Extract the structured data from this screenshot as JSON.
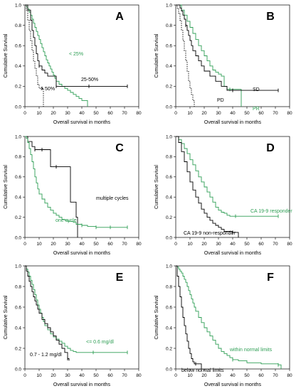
{
  "chart_data": [
    {
      "type": "line",
      "panel": "A",
      "xlabel": "Overall survival in months",
      "ylabel": "Cumulative Survival",
      "xlim": [
        0,
        80
      ],
      "ylim": [
        0,
        1
      ],
      "xticks": [
        "0",
        "10",
        "20",
        "30",
        "40",
        "50",
        "60",
        "70",
        "80"
      ],
      "yticks": [
        "0.0",
        "0.2",
        "0.4",
        "0.6",
        "0.8",
        "1.0"
      ],
      "grid": false,
      "series": [
        {
          "name": "< 25%",
          "color": "#2e9e54",
          "style": "solid",
          "x": [
            0,
            1,
            2,
            3,
            4,
            5,
            6,
            7,
            8,
            9,
            10,
            11,
            12,
            13,
            14,
            15,
            16,
            17,
            18,
            19,
            20,
            21,
            22,
            24,
            26,
            28,
            30,
            32,
            34,
            36,
            38,
            40,
            44
          ],
          "y": [
            1,
            0.98,
            0.96,
            0.93,
            0.9,
            0.86,
            0.82,
            0.78,
            0.74,
            0.7,
            0.66,
            0.62,
            0.58,
            0.54,
            0.5,
            0.46,
            0.43,
            0.4,
            0.37,
            0.34,
            0.31,
            0.28,
            0.25,
            0.22,
            0.2,
            0.18,
            0.16,
            0.14,
            0.12,
            0.1,
            0.08,
            0.06,
            0
          ]
        },
        {
          "name": "25-50%",
          "color": "#000000",
          "style": "solid",
          "x": [
            0,
            2,
            4,
            5,
            6,
            7,
            8,
            9,
            10,
            12,
            14,
            16,
            18,
            20,
            22,
            45,
            72
          ],
          "y": [
            1,
            0.95,
            0.85,
            0.75,
            0.68,
            0.6,
            0.52,
            0.45,
            0.4,
            0.36,
            0.33,
            0.3,
            0.3,
            0.3,
            0.2,
            0.2,
            0.2
          ],
          "censored_x": [
            10,
            22,
            45,
            72
          ]
        },
        {
          "name": "> 50%",
          "color": "#000000",
          "style": "dotted",
          "x": [
            0,
            1,
            2,
            3,
            4,
            5,
            6,
            7,
            8,
            9,
            10,
            11,
            12,
            13
          ],
          "y": [
            1,
            0.95,
            0.85,
            0.75,
            0.65,
            0.55,
            0.45,
            0.38,
            0.3,
            0.22,
            0.18,
            0.18,
            0.18,
            0
          ],
          "censored_x": [
            12
          ]
        }
      ]
    },
    {
      "type": "line",
      "panel": "B",
      "xlabel": "Overall survival in months",
      "ylabel": "Cumulative Survival",
      "xlim": [
        0,
        80
      ],
      "ylim": [
        0,
        1
      ],
      "xticks": [
        "0",
        "10",
        "20",
        "30",
        "40",
        "50",
        "60",
        "70",
        "80"
      ],
      "yticks": [
        "0.0",
        "0.2",
        "0.4",
        "0.6",
        "0.8",
        "1.0"
      ],
      "grid": false,
      "series": [
        {
          "name": "PR",
          "color": "#2e9e54",
          "style": "solid",
          "x": [
            0,
            4,
            6,
            8,
            10,
            12,
            14,
            16,
            18,
            20,
            22,
            24,
            26,
            28,
            30,
            32,
            34,
            36,
            38,
            40,
            44,
            46
          ],
          "y": [
            1,
            0.95,
            0.9,
            0.84,
            0.78,
            0.72,
            0.66,
            0.6,
            0.55,
            0.5,
            0.45,
            0.4,
            0.36,
            0.34,
            0.32,
            0.3,
            0.2,
            0.17,
            0.17,
            0.17,
            0.17,
            0
          ],
          "censored_x": [
            38
          ]
        },
        {
          "name": "SD",
          "color": "#000000",
          "style": "solid",
          "x": [
            0,
            3,
            4,
            5,
            6,
            7,
            8,
            9,
            10,
            11,
            12,
            14,
            16,
            18,
            20,
            24,
            28,
            32,
            36,
            40,
            72
          ],
          "y": [
            1,
            0.97,
            0.94,
            0.9,
            0.86,
            0.8,
            0.75,
            0.7,
            0.65,
            0.6,
            0.55,
            0.5,
            0.45,
            0.4,
            0.35,
            0.3,
            0.25,
            0.2,
            0.16,
            0.16,
            0.16
          ],
          "censored_x": [
            7,
            40,
            72
          ]
        },
        {
          "name": "PD",
          "color": "#000000",
          "style": "dotted",
          "x": [
            0,
            1,
            2,
            3,
            4,
            5,
            6,
            7,
            8,
            9,
            10,
            11,
            12,
            13
          ],
          "y": [
            1,
            0.97,
            0.92,
            0.85,
            0.75,
            0.65,
            0.55,
            0.45,
            0.35,
            0.25,
            0.18,
            0.12,
            0.06,
            0
          ]
        }
      ]
    },
    {
      "type": "line",
      "panel": "C",
      "xlabel": "Overall survival in months",
      "ylabel": "Cumulative Survival",
      "xlim": [
        0,
        80
      ],
      "ylim": [
        0,
        1
      ],
      "xticks": [
        "0",
        "10",
        "20",
        "30",
        "40",
        "50",
        "60",
        "70",
        "80"
      ],
      "yticks": [
        "0.0",
        "0.2",
        "0.4",
        "0.6",
        "0.8",
        "1.0"
      ],
      "grid": false,
      "series": [
        {
          "name": "multiple cycles",
          "color": "#000000",
          "style": "solid",
          "x": [
            0,
            2,
            5,
            7,
            12,
            14,
            18,
            22,
            28,
            32,
            34,
            36,
            37
          ],
          "y": [
            1,
            0.95,
            0.9,
            0.87,
            0.87,
            0.87,
            0.7,
            0.7,
            0.7,
            0.35,
            0.35,
            0.2,
            0
          ],
          "censored_x": [
            7,
            12,
            22
          ]
        },
        {
          "name": "one cycle",
          "color": "#2e9e54",
          "style": "solid",
          "x": [
            0,
            1,
            2,
            3,
            4,
            5,
            6,
            7,
            8,
            9,
            10,
            12,
            14,
            16,
            18,
            20,
            22,
            24,
            26,
            28,
            30,
            34,
            36,
            40,
            44,
            50,
            60,
            72
          ],
          "y": [
            1,
            0.98,
            0.94,
            0.88,
            0.82,
            0.75,
            0.68,
            0.6,
            0.54,
            0.48,
            0.43,
            0.38,
            0.34,
            0.3,
            0.27,
            0.24,
            0.22,
            0.2,
            0.18,
            0.17,
            0.16,
            0.15,
            0.13,
            0.12,
            0.11,
            0.1,
            0.1,
            0.1
          ],
          "censored_x": [
            40,
            50,
            60,
            72
          ]
        }
      ]
    },
    {
      "type": "line",
      "panel": "D",
      "xlabel": "Overall survival in months",
      "ylabel": "Cumulative Survival",
      "xlim": [
        0,
        80
      ],
      "ylim": [
        0,
        1
      ],
      "xticks": [
        "0",
        "10",
        "20",
        "30",
        "40",
        "50",
        "60",
        "70",
        "80"
      ],
      "yticks": [
        "0.0",
        "0.2",
        "0.4",
        "0.6",
        "0.8",
        "1.0"
      ],
      "grid": false,
      "series": [
        {
          "name": "CA 19-9 responder",
          "color": "#2e9e54",
          "style": "solid",
          "x": [
            0,
            2,
            4,
            6,
            8,
            10,
            12,
            14,
            16,
            18,
            20,
            22,
            24,
            26,
            28,
            30,
            32,
            34,
            36,
            38,
            40,
            42,
            72
          ],
          "y": [
            1,
            0.97,
            0.93,
            0.88,
            0.83,
            0.77,
            0.72,
            0.66,
            0.6,
            0.55,
            0.5,
            0.45,
            0.4,
            0.35,
            0.3,
            0.27,
            0.25,
            0.24,
            0.22,
            0.21,
            0.21,
            0.21,
            0.21
          ],
          "censored_x": [
            42,
            72
          ]
        },
        {
          "name": "CA 19-9 non-responder",
          "color": "#000000",
          "style": "solid",
          "x": [
            0,
            2,
            4,
            6,
            8,
            10,
            12,
            14,
            16,
            18,
            20,
            22,
            24,
            26,
            28,
            30,
            32,
            34,
            40,
            44
          ],
          "y": [
            1,
            0.94,
            0.85,
            0.75,
            0.65,
            0.55,
            0.47,
            0.4,
            0.34,
            0.28,
            0.24,
            0.2,
            0.17,
            0.14,
            0.12,
            0.1,
            0.08,
            0.06,
            0.05,
            0
          ],
          "censored_x": [
            40
          ]
        }
      ]
    },
    {
      "type": "line",
      "panel": "E",
      "xlabel": "Overall survival in months",
      "ylabel": "Cumulative Survival",
      "xlim": [
        0,
        80
      ],
      "ylim": [
        0,
        1
      ],
      "xticks": [
        "0",
        "10",
        "20",
        "30",
        "40",
        "50",
        "60",
        "70",
        "80"
      ],
      "yticks": [
        "0.0",
        "0.2",
        "0.4",
        "0.6",
        "0.8",
        "1.0"
      ],
      "grid": false,
      "series": [
        {
          "name": "<= 0.6 mg/dl",
          "color": "#2e9e54",
          "style": "solid",
          "x": [
            0,
            1,
            2,
            3,
            4,
            5,
            6,
            7,
            8,
            9,
            10,
            11,
            12,
            13,
            14,
            16,
            18,
            20,
            22,
            24,
            26,
            28,
            30,
            32,
            34,
            36,
            38,
            40,
            44,
            50,
            72
          ],
          "y": [
            1,
            0.97,
            0.94,
            0.9,
            0.86,
            0.82,
            0.77,
            0.72,
            0.67,
            0.62,
            0.58,
            0.54,
            0.5,
            0.46,
            0.42,
            0.38,
            0.34,
            0.31,
            0.29,
            0.27,
            0.25,
            0.22,
            0.2,
            0.18,
            0.17,
            0.16,
            0.16,
            0.16,
            0.16,
            0.16,
            0.16
          ],
          "censored_x": [
            48,
            72
          ]
        },
        {
          "name": "0.7 - 1.2 mg/dl",
          "color": "#000000",
          "style": "solid",
          "x": [
            0,
            1,
            2,
            3,
            4,
            5,
            6,
            7,
            8,
            9,
            10,
            12,
            14,
            16,
            18,
            20,
            22,
            24,
            26,
            28,
            30,
            31
          ],
          "y": [
            1,
            0.95,
            0.9,
            0.85,
            0.8,
            0.75,
            0.7,
            0.66,
            0.62,
            0.58,
            0.54,
            0.48,
            0.44,
            0.4,
            0.36,
            0.32,
            0.28,
            0.24,
            0.2,
            0.16,
            0.1,
            0.08
          ],
          "censored_x": [
            30
          ]
        }
      ]
    },
    {
      "type": "line",
      "panel": "F",
      "xlabel": "Overall survival in months",
      "ylabel": "Cumulative Survival",
      "xlim": [
        0,
        80
      ],
      "ylim": [
        0,
        1
      ],
      "xticks": [
        "0",
        "10",
        "20",
        "30",
        "40",
        "50",
        "60",
        "70",
        "80"
      ],
      "yticks": [
        "0.0",
        "0.2",
        "0.4",
        "0.6",
        "0.8",
        "1.0"
      ],
      "grid": false,
      "series": [
        {
          "name": "within normal limits",
          "color": "#2e9e54",
          "style": "solid",
          "x": [
            0,
            1,
            2,
            3,
            4,
            5,
            6,
            7,
            8,
            9,
            10,
            11,
            12,
            13,
            14,
            16,
            18,
            20,
            22,
            24,
            26,
            28,
            30,
            32,
            34,
            36,
            38,
            40,
            44,
            50,
            60,
            72,
            74
          ],
          "y": [
            1,
            0.99,
            0.97,
            0.95,
            0.93,
            0.9,
            0.87,
            0.84,
            0.8,
            0.76,
            0.72,
            0.68,
            0.64,
            0.6,
            0.56,
            0.5,
            0.45,
            0.4,
            0.36,
            0.32,
            0.28,
            0.24,
            0.2,
            0.17,
            0.15,
            0.13,
            0.11,
            0.09,
            0.08,
            0.06,
            0.05,
            0.04,
            0
          ],
          "censored_x": [
            40,
            72
          ]
        },
        {
          "name": "below normal limits",
          "color": "#000000",
          "style": "solid",
          "x": [
            0,
            1,
            2,
            3,
            4,
            5,
            6,
            7,
            8,
            9,
            10,
            11,
            12,
            13,
            14,
            16,
            18
          ],
          "y": [
            1,
            0.9,
            0.8,
            0.7,
            0.6,
            0.5,
            0.42,
            0.34,
            0.27,
            0.2,
            0.15,
            0.1,
            0.07,
            0.05,
            0.05,
            0.05,
            0
          ],
          "censored_x": [
            14
          ]
        }
      ]
    }
  ],
  "panels": {
    "A": {
      "letter": "A",
      "ylabel": "Cumulative Survival",
      "xlabel": "Overall survival in months",
      "labels": [
        "< 25%",
        "25-50%",
        "> 50%"
      ]
    },
    "B": {
      "letter": "B",
      "ylabel": "Cumulative Survival",
      "xlabel": "Overall survival in months",
      "labels": [
        "SD",
        "PD",
        "PR"
      ]
    },
    "C": {
      "letter": "C",
      "ylabel": "Cumulative Survival",
      "xlabel": "Overall survival in months",
      "labels": [
        "multiple cycles",
        "one cycle"
      ]
    },
    "D": {
      "letter": "D",
      "ylabel": "Cumulative Survival",
      "xlabel": "Overall survival in months",
      "labels": [
        "CA 19-9 responder",
        "CA 19-9 non-responder"
      ]
    },
    "E": {
      "letter": "E",
      "ylabel": "Cumulative Survival",
      "xlabel": "Overall survival in months",
      "labels": [
        "<= 0.6 mg/dl",
        "0.7 - 1.2 mg/dl"
      ]
    },
    "F": {
      "letter": "F",
      "ylabel": "Cumulative Survival",
      "xlabel": "Overall survival in months",
      "labels": [
        "within normal limits",
        "below normal limits"
      ]
    }
  },
  "colors": {
    "green": "#2e9e54",
    "black": "#000000"
  }
}
